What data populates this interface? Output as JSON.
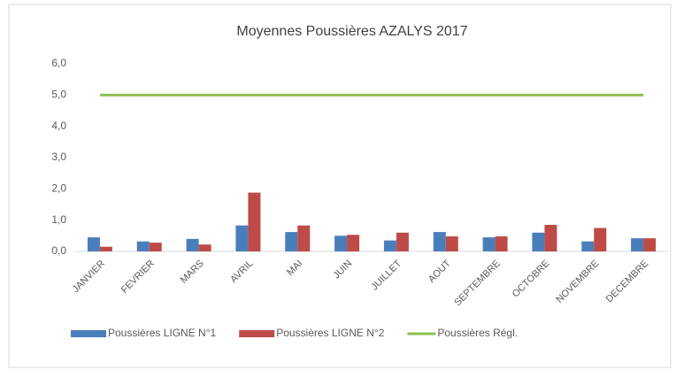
{
  "chart_data": {
    "type": "bar",
    "title": "Moyennes Poussières AZALYS 2017",
    "categories": [
      "JANVIER",
      "FEVRIER",
      "MARS",
      "AVRIL",
      "MAI",
      "JUIN",
      "JUILLET",
      "AOUT",
      "SEPTEMBRE",
      "OCTOBRE",
      "NOVEMBRE",
      "DECEMBRE"
    ],
    "series": [
      {
        "name": "Poussières LIGNE N°1",
        "color": "#4a7ebb",
        "values": [
          0.45,
          0.32,
          0.4,
          0.83,
          0.62,
          0.5,
          0.35,
          0.62,
          0.45,
          0.6,
          0.32,
          0.42
        ]
      },
      {
        "name": "Poussières LIGNE N°2",
        "color": "#be4b48",
        "values": [
          0.15,
          0.28,
          0.22,
          1.88,
          0.83,
          0.53,
          0.6,
          0.48,
          0.48,
          0.85,
          0.75,
          0.42
        ]
      },
      {
        "name": "Poussières Régl.",
        "color": "#8cc152",
        "type": "line",
        "values": [
          5,
          5,
          5,
          5,
          5,
          5,
          5,
          5,
          5,
          5,
          5,
          5
        ]
      }
    ],
    "ylim": [
      0,
      6
    ],
    "yticks": [
      {
        "value": 0,
        "label": "0,0"
      },
      {
        "value": 1,
        "label": "1,0"
      },
      {
        "value": 2,
        "label": "2,0"
      },
      {
        "value": 3,
        "label": "3,0"
      },
      {
        "value": 4,
        "label": "4,0"
      },
      {
        "value": 5,
        "label": "5,0"
      },
      {
        "value": 6,
        "label": "6,0"
      }
    ],
    "legend": "bottom"
  }
}
